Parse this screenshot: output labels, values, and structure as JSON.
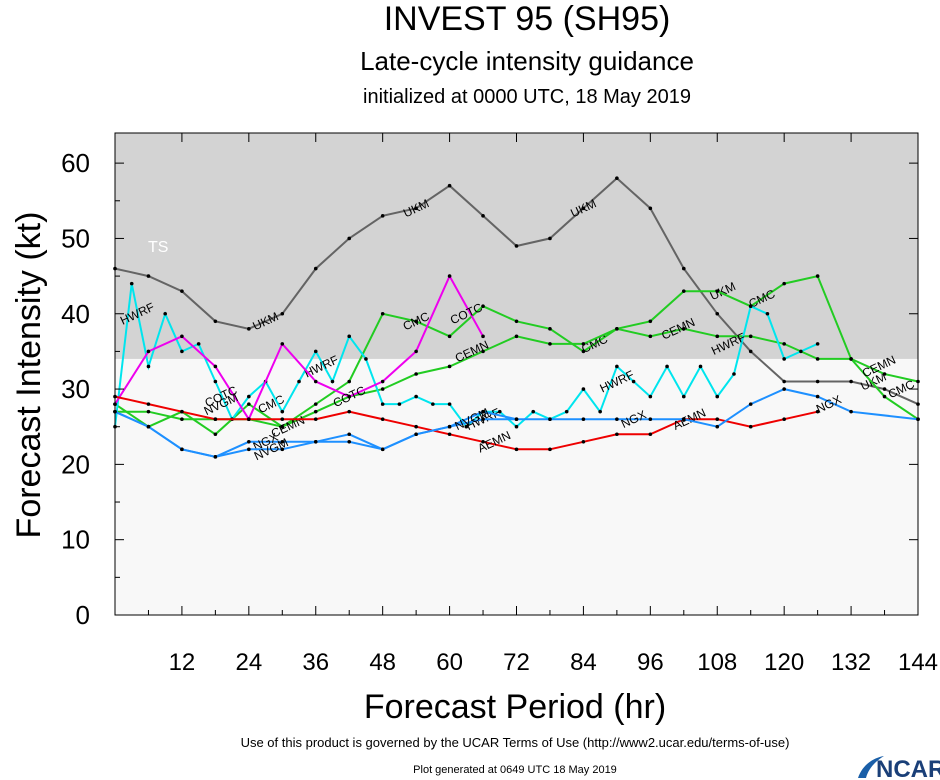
{
  "chart_data": {
    "type": "line",
    "title": "INVEST 95 (SH95)",
    "subtitle": "Late-cycle intensity guidance",
    "initialized": "initialized at 0000 UTC, 18 May 2019",
    "xlabel": "Forecast Period (hr)",
    "ylabel": "Forecast Intensity (kt)",
    "xlim": [
      0,
      144
    ],
    "ylim": [
      0,
      64
    ],
    "x_ticks": [
      "12",
      "24",
      "36",
      "48",
      "60",
      "72",
      "84",
      "96",
      "108",
      "120",
      "132",
      "144"
    ],
    "y_ticks": [
      "0",
      "10",
      "20",
      "30",
      "40",
      "50",
      "60"
    ],
    "band_label": "TS",
    "band_from": 34,
    "band_color": "#d3d3d3",
    "below_band_color": "#f8f8f8",
    "series": [
      {
        "name": "UKM",
        "color": "#646464",
        "x": [
          0,
          6,
          12,
          18,
          24,
          30,
          36,
          42,
          48,
          54,
          60,
          66,
          72,
          78,
          84,
          90,
          96,
          102,
          108,
          114,
          120,
          126,
          132,
          138,
          144
        ],
        "y": [
          46,
          45,
          43,
          39,
          38,
          40,
          46,
          50,
          53,
          54,
          57,
          53,
          49,
          50,
          54,
          58,
          54,
          46,
          40,
          35,
          31,
          31,
          31,
          30,
          28
        ],
        "labels": [
          {
            "x": 27,
            "y": 39
          },
          {
            "x": 54,
            "y": 54
          },
          {
            "x": 84,
            "y": 54
          },
          {
            "x": 109,
            "y": 43
          },
          {
            "x": 136,
            "y": 31
          }
        ]
      },
      {
        "name": "CMC",
        "color": "#22cc22",
        "x": [
          0,
          6,
          12,
          18,
          24,
          30,
          36,
          42,
          48,
          54,
          60,
          66,
          72,
          78,
          84,
          90,
          96,
          102,
          108,
          114,
          120,
          126,
          132,
          138,
          144
        ],
        "y": [
          28,
          25,
          27,
          24,
          28,
          25,
          28,
          31,
          40,
          39,
          37,
          41,
          39,
          38,
          35,
          38,
          39,
          43,
          43,
          41,
          44,
          45,
          34,
          29,
          26
        ],
        "labels": [
          {
            "x": 28,
            "y": 28
          },
          {
            "x": 54,
            "y": 39
          },
          {
            "x": 86,
            "y": 36
          },
          {
            "x": 116,
            "y": 42
          },
          {
            "x": 141,
            "y": 30
          }
        ]
      },
      {
        "name": "CEMN",
        "color": "#22cc22",
        "x": [
          0,
          6,
          12,
          18,
          24,
          30,
          36,
          42,
          48,
          54,
          60,
          66,
          72,
          78,
          84,
          90,
          96,
          102,
          108,
          114,
          120,
          126,
          132,
          138,
          144
        ],
        "y": [
          27,
          27,
          26,
          26,
          26,
          25,
          27,
          29,
          30,
          32,
          33,
          35,
          37,
          36,
          36,
          38,
          37,
          38,
          37,
          37,
          36,
          34,
          34,
          32,
          31
        ],
        "labels": [
          {
            "x": 31,
            "y": 25
          },
          {
            "x": 64,
            "y": 35
          },
          {
            "x": 101,
            "y": 38
          },
          {
            "x": 137,
            "y": 33
          }
        ]
      },
      {
        "name": "HWRF",
        "color": "#00e5ee",
        "x": [
          0,
          3,
          6,
          9,
          12,
          15,
          18,
          21,
          24,
          27,
          30,
          33,
          36,
          39,
          42,
          45,
          48,
          51,
          54,
          57,
          60,
          63,
          66,
          69,
          72,
          75,
          78,
          81,
          84,
          87,
          90,
          93,
          96,
          99,
          102,
          105,
          108,
          111,
          114,
          117,
          120,
          123,
          126
        ],
        "y": [
          25,
          44,
          33,
          40,
          35,
          36,
          31,
          26,
          29,
          31,
          27,
          31,
          35,
          31,
          37,
          34,
          28,
          28,
          29,
          28,
          28,
          25,
          27,
          27,
          25,
          27,
          26,
          27,
          30,
          27,
          33,
          31,
          29,
          33,
          29,
          33,
          29,
          32,
          41,
          40,
          34,
          35,
          36
        ],
        "labels": [
          {
            "x": 4,
            "y": 40
          },
          {
            "x": 37,
            "y": 33
          },
          {
            "x": 90,
            "y": 31
          },
          {
            "x": 110,
            "y": 36
          },
          {
            "x": 66,
            "y": 26
          }
        ]
      },
      {
        "name": "COTC",
        "color": "#ee00ee",
        "x": [
          0,
          6,
          12,
          18,
          24,
          30,
          36,
          42,
          48,
          54,
          60,
          66
        ],
        "y": [
          28,
          35,
          37,
          33,
          26,
          36,
          31,
          29,
          31,
          35,
          45,
          37
        ],
        "labels": [
          {
            "x": 19,
            "y": 29
          },
          {
            "x": 42,
            "y": 29
          },
          {
            "x": 63,
            "y": 40
          }
        ]
      },
      {
        "name": "AEMN",
        "color": "#ee0000",
        "x": [
          0,
          6,
          12,
          18,
          24,
          30,
          36,
          42,
          48,
          54,
          60,
          66,
          72,
          78,
          84,
          90,
          96,
          102,
          108,
          114,
          120,
          126
        ],
        "y": [
          29,
          28,
          27,
          26,
          26,
          26,
          26,
          27,
          26,
          25,
          24,
          23,
          22,
          22,
          23,
          24,
          24,
          26,
          26,
          25,
          26,
          27
        ],
        "labels": [
          {
            "x": 68,
            "y": 23
          },
          {
            "x": 103,
            "y": 26
          }
        ]
      },
      {
        "name": "NGX",
        "color": "#1e90ff",
        "x": [
          0,
          6,
          12,
          18,
          24,
          30,
          36,
          42,
          48,
          54,
          60,
          66,
          72,
          78,
          84,
          90,
          96,
          102,
          108,
          114,
          120,
          126,
          132,
          144
        ],
        "y": [
          27,
          25,
          22,
          21,
          23,
          23,
          23,
          24,
          22,
          24,
          25,
          27,
          26,
          26,
          26,
          26,
          26,
          26,
          25,
          28,
          30,
          29,
          27,
          26
        ],
        "labels": [
          {
            "x": 27,
            "y": 23
          },
          {
            "x": 93,
            "y": 26
          },
          {
            "x": 128,
            "y": 28
          }
        ]
      },
      {
        "name": "NVGM",
        "color": "#1e90ff",
        "x": [
          0,
          6,
          12,
          18,
          24,
          30,
          36,
          42,
          48,
          54,
          60,
          66,
          72
        ],
        "y": [
          27,
          25,
          22,
          21,
          22,
          22,
          23,
          23,
          22,
          24,
          25,
          26,
          26
        ],
        "labels": [
          {
            "x": 19,
            "y": 28
          },
          {
            "x": 28,
            "y": 22
          },
          {
            "x": 64,
            "y": 26
          }
        ]
      }
    ]
  },
  "footer": {
    "terms": "Use of this product is governed by the UCAR Terms of Use (http://www2.ucar.edu/terms-of-use)",
    "generated": "Plot generated at 0649 UTC   18 May 2019",
    "logo": "NCAR"
  }
}
